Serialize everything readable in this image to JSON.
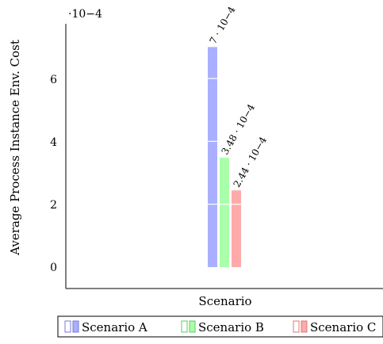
{
  "chart_data": {
    "type": "bar",
    "categories": [
      "Scenario"
    ],
    "series": [
      {
        "name": "Scenario A",
        "values": [
          0.0007
        ],
        "data_label": "7 · 10−4",
        "color": "#aab0ff"
      },
      {
        "name": "Scenario B",
        "values": [
          0.000348
        ],
        "data_label": "3.48 · 10−4",
        "color": "#aaffaa"
      },
      {
        "name": "Scenario C",
        "values": [
          0.000244
        ],
        "data_label": "2.44 · 10−4",
        "color": "#ffaaaa"
      }
    ],
    "xlabel": "Scenario",
    "ylabel": "Average Process Instance Env. Cost",
    "y_multiplier": "·10−4",
    "yticks": [
      "0",
      "2",
      "4",
      "6"
    ],
    "ylim": [
      -2e-05,
      0.000775
    ],
    "grid": "white lines inside bars",
    "legend_position": "bottom"
  }
}
